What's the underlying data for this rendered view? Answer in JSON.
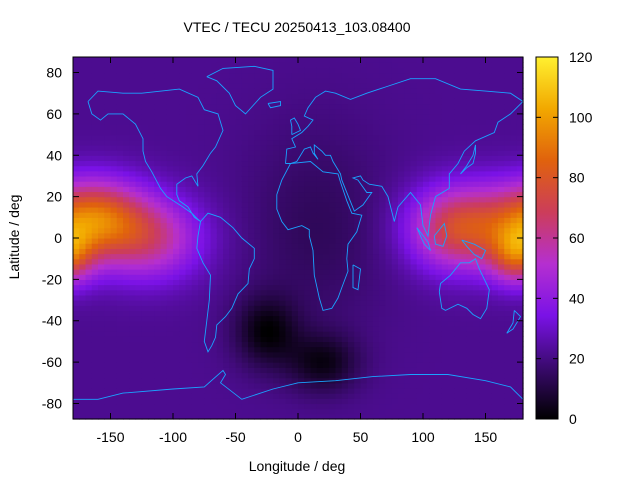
{
  "chart_data": {
    "type": "heatmap",
    "title": "VTEC / TECU 20250413_103.08400",
    "xlabel": "Longitude / deg",
    "ylabel": "Latitude / deg",
    "xlim": [
      -180,
      180
    ],
    "ylim": [
      -87.5,
      87.5
    ],
    "x_ticks": [
      -150,
      -100,
      -50,
      0,
      50,
      100,
      150
    ],
    "y_ticks": [
      -80,
      -60,
      -40,
      -20,
      0,
      20,
      40,
      60,
      80
    ],
    "colorbar": {
      "range": [
        0,
        120
      ],
      "ticks": [
        0,
        20,
        40,
        60,
        80,
        100,
        120
      ]
    },
    "colormap_stops": [
      "#000000",
      "#3a0a6e",
      "#7a12e6",
      "#b52fd0",
      "#cc3d5a",
      "#e0620d",
      "#f2a800",
      "#fff030"
    ],
    "grid_resolution_deg": {
      "lon": 5,
      "lat": 2.5
    },
    "field_model": {
      "background_tecu": 22,
      "bumps": [
        {
          "lon": -165,
          "lat": 10,
          "amp_tecu": 60,
          "sigma_lon": 28,
          "sigma_lat": 13
        },
        {
          "lon": -120,
          "lat": 0,
          "amp_tecu": 38,
          "sigma_lon": 30,
          "sigma_lat": 14
        },
        {
          "lon": 130,
          "lat": 5,
          "amp_tecu": 55,
          "sigma_lon": 28,
          "sigma_lat": 14
        },
        {
          "lon": 175,
          "lat": -8,
          "amp_tecu": 45,
          "sigma_lon": 15,
          "sigma_lat": 10
        },
        {
          "lon": -25,
          "lat": -45,
          "amp_tecu": -20,
          "sigma_lon": 18,
          "sigma_lat": 12
        },
        {
          "lon": 20,
          "lat": -60,
          "amp_tecu": -18,
          "sigma_lon": 20,
          "sigma_lat": 10
        },
        {
          "lon": 15,
          "lat": 5,
          "amp_tecu": -8,
          "sigma_lon": 40,
          "sigma_lat": 35
        }
      ]
    },
    "overlay_color": "#1aa3ff"
  }
}
